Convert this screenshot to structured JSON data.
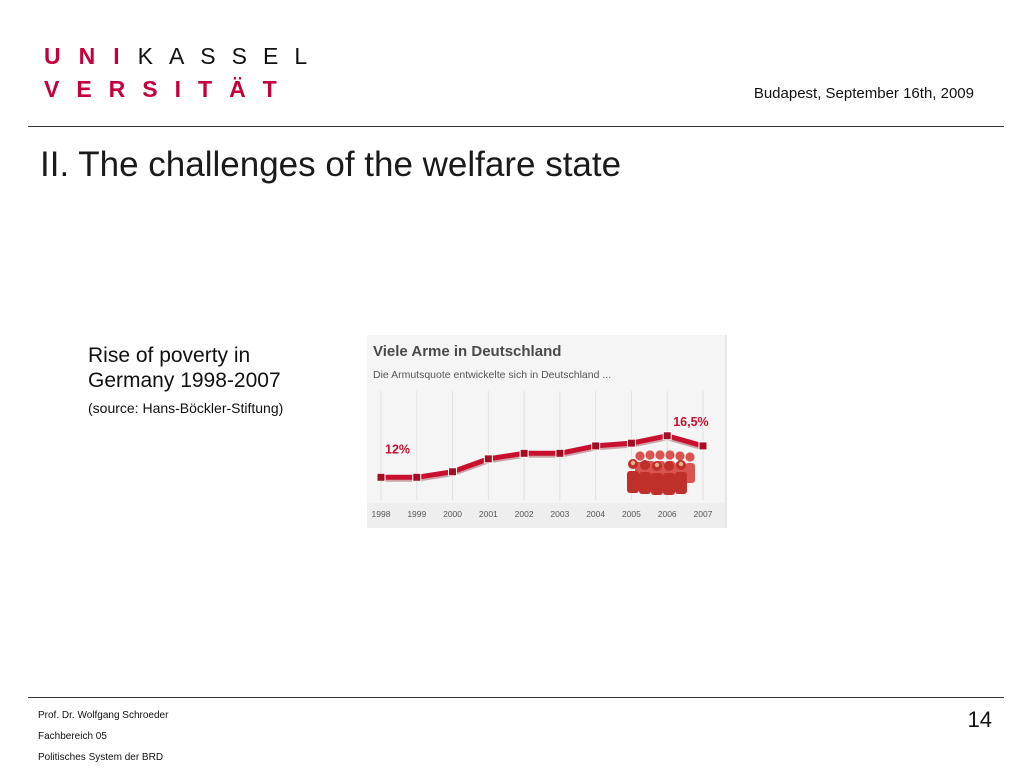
{
  "logo": {
    "uni": "UNI",
    "kassel": "KASSEL",
    "versitat": "VERSITÄT"
  },
  "header": {
    "date": "Budapest, September 16th, 2009"
  },
  "slide": {
    "title": "II. The challenges of the welfare state",
    "caption": "Rise of poverty in Germany 1998-2007",
    "source": "(source: Hans-Böckler-Stiftung)"
  },
  "chart_data": {
    "type": "line",
    "title": "Viele Arme in Deutschland",
    "subtitle": "Die Armutsquote entwickelte sich in Deutschland ...",
    "categories": [
      "1998",
      "1999",
      "2000",
      "2001",
      "2002",
      "2003",
      "2004",
      "2005",
      "2006",
      "2007"
    ],
    "series": [
      {
        "values": [
          12.0,
          12.0,
          12.6,
          14.0,
          14.6,
          14.6,
          15.4,
          15.7,
          16.5,
          15.4
        ]
      }
    ],
    "data_labels": [
      {
        "index": 0,
        "text": "12%"
      },
      {
        "index": 8,
        "text": "16,5%"
      }
    ],
    "ylim": [
      9,
      22
    ],
    "grid": "vertical",
    "colors": {
      "line": "#c8102e",
      "marker": "#a50d25",
      "label": "#c8102e",
      "background": "#f5f5f5"
    },
    "icon": "people-group-icon"
  },
  "footer": {
    "lines": [
      "Prof. Dr. Wolfgang Schroeder",
      "Fachbereich 05",
      "Politisches System der BRD"
    ],
    "page": "14"
  }
}
